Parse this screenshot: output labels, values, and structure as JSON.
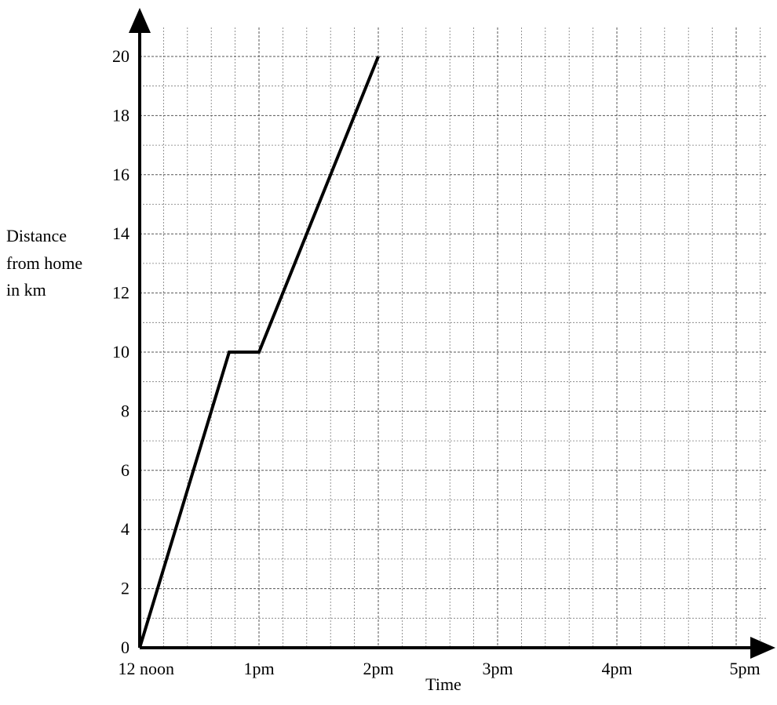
{
  "chart_data": {
    "type": "line",
    "title": "",
    "xlabel": "Time",
    "ylabel": [
      "Distance",
      "from home",
      "in km"
    ],
    "x_tick_labels": [
      "12 noon",
      "1pm",
      "2pm",
      "3pm",
      "4pm",
      "5pm"
    ],
    "y_tick_labels": [
      "0",
      "2",
      "4",
      "6",
      "8",
      "10",
      "12",
      "14",
      "16",
      "18",
      "20"
    ],
    "xlim_hours_after_noon": [
      0,
      5
    ],
    "ylim": [
      0,
      20
    ],
    "grid": true,
    "series": [
      {
        "x_hours_after_noon": [
          0,
          0.75,
          1,
          2
        ],
        "y": [
          0,
          10,
          10,
          20
        ]
      }
    ],
    "colors": {
      "line": "#000000",
      "axes": "#000000",
      "grid": "#6f6f6f"
    }
  }
}
